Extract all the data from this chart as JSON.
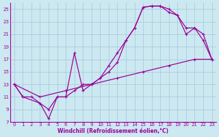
{
  "xlabel": "Windchill (Refroidissement éolien,°C)",
  "bg_color": "#cce8f0",
  "line_color": "#990099",
  "grid_color": "#aaccdd",
  "xlim": [
    -0.5,
    23.5
  ],
  "ylim": [
    7,
    26
  ],
  "xticks": [
    0,
    1,
    2,
    3,
    4,
    5,
    6,
    7,
    8,
    9,
    10,
    11,
    12,
    13,
    14,
    15,
    16,
    17,
    18,
    19,
    20,
    21,
    22,
    23
  ],
  "yticks": [
    7,
    9,
    11,
    13,
    15,
    17,
    19,
    21,
    23,
    25
  ],
  "curve1_x": [
    0,
    1,
    2,
    3,
    4,
    5,
    6,
    7,
    8,
    9,
    10,
    11,
    12,
    13,
    14,
    15,
    16,
    17,
    18,
    19,
    20,
    21,
    22,
    23
  ],
  "curve1_y": [
    13,
    11,
    11,
    10,
    9,
    11,
    11,
    12,
    13,
    13,
    14,
    16,
    18,
    20,
    22,
    25.3,
    25.5,
    25.5,
    25,
    24,
    22,
    22,
    20,
    17
  ],
  "curve2_x": [
    0,
    1,
    3,
    4,
    5,
    6,
    7,
    8,
    9,
    10,
    11,
    12,
    13,
    14,
    15,
    16,
    17,
    18,
    19,
    20,
    21,
    22,
    23
  ],
  "curve2_y": [
    13,
    11,
    10,
    7.5,
    11,
    11,
    18,
    12,
    13,
    14,
    15,
    16.5,
    20,
    22,
    25.3,
    25.5,
    25.5,
    24.5,
    24,
    21,
    22,
    21,
    17
  ],
  "curve3_x": [
    0,
    3,
    6,
    9,
    12,
    15,
    18,
    21,
    23
  ],
  "curve3_y": [
    13,
    11,
    12,
    13,
    14,
    15,
    16,
    17,
    17
  ]
}
